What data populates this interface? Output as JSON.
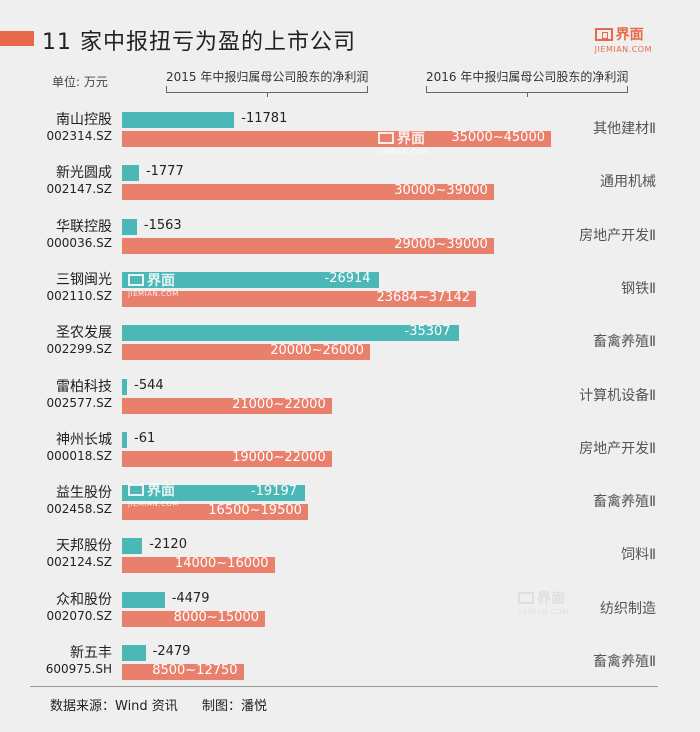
{
  "header": {
    "title": "11 家中报扭亏为盈的上市公司",
    "logo_text": "界面",
    "logo_sub": "JIEMIAN.COM",
    "unit": "单位: 万元"
  },
  "watermark": {
    "text": "界面",
    "sub": "JIEMIAN.COM"
  },
  "footer": {
    "source": "数据来源：Wind 资讯",
    "author": "制图：潘悦"
  },
  "colors": {
    "accent": "#e8694a",
    "teal": "#4cb7b7",
    "coral": "#e8806c"
  },
  "chart_data": {
    "type": "bar",
    "orientation": "horizontal",
    "title": "11 家中报扭亏为盈的上市公司",
    "unit": "单位: 万元",
    "series_labels": [
      "2015 年中报归属母公司股东的净利润",
      "2016 年中报归属母公司股东的净利润"
    ],
    "companies": [
      {
        "name": "南山控股",
        "code": "002314.SZ",
        "industry": "其他建材Ⅱ",
        "v2015": -11781,
        "label2015": "-11781",
        "low2016": 35000,
        "high2016": 45000,
        "label2016": "35000~45000"
      },
      {
        "name": "新光圆成",
        "code": "002147.SZ",
        "industry": "通用机械",
        "v2015": -1777,
        "label2015": "-1777",
        "low2016": 30000,
        "high2016": 39000,
        "label2016": "30000~39000"
      },
      {
        "name": "华联控股",
        "code": "000036.SZ",
        "industry": "房地产开发Ⅱ",
        "v2015": -1563,
        "label2015": "-1563",
        "low2016": 29000,
        "high2016": 39000,
        "label2016": "29000~39000"
      },
      {
        "name": "三钢闽光",
        "code": "002110.SZ",
        "industry": "钢铁Ⅱ",
        "v2015": -26914,
        "label2015": "-26914",
        "low2016": 23684,
        "high2016": 37142,
        "label2016": "23684~37142"
      },
      {
        "name": "圣农发展",
        "code": "002299.SZ",
        "industry": "畜禽养殖Ⅱ",
        "v2015": -35307,
        "label2015": "-35307",
        "low2016": 20000,
        "high2016": 26000,
        "label2016": "20000~26000"
      },
      {
        "name": "雷柏科技",
        "code": "002577.SZ",
        "industry": "计算机设备Ⅱ",
        "v2015": -544,
        "label2015": "-544",
        "low2016": 21000,
        "high2016": 22000,
        "label2016": "21000~22000"
      },
      {
        "name": "神州长城",
        "code": "000018.SZ",
        "industry": "房地产开发Ⅱ",
        "v2015": -61,
        "label2015": "-61",
        "low2016": 19000,
        "high2016": 22000,
        "label2016": "19000~22000"
      },
      {
        "name": "益生股份",
        "code": "002458.SZ",
        "industry": "畜禽养殖Ⅱ",
        "v2015": -19197,
        "label2015": "-19197",
        "low2016": 16500,
        "high2016": 19500,
        "label2016": "16500~19500"
      },
      {
        "name": "天邦股份",
        "code": "002124.SZ",
        "industry": "饲料Ⅱ",
        "v2015": -2120,
        "label2015": "-2120",
        "low2016": 14000,
        "high2016": 16000,
        "label2016": "14000~16000"
      },
      {
        "name": "众和股份",
        "code": "002070.SZ",
        "industry": "纺织制造",
        "v2015": -4479,
        "label2015": "-4479",
        "low2016": 8000,
        "high2016": 15000,
        "label2016": "8000~15000"
      },
      {
        "name": "新五丰",
        "code": "600975.SH",
        "industry": "畜禽养殖Ⅱ",
        "v2015": -2479,
        "label2015": "-2479",
        "low2016": 8500,
        "high2016": 12750,
        "label2016": "8500~12750"
      }
    ]
  }
}
